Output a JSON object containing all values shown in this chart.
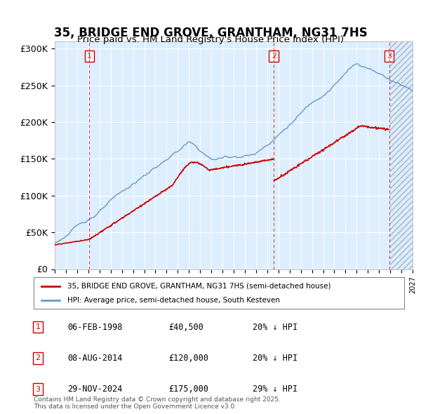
{
  "title": "35, BRIDGE END GROVE, GRANTHAM, NG31 7HS",
  "subtitle": "Price paid vs. HM Land Registry's House Price Index (HPI)",
  "property_label": "35, BRIDGE END GROVE, GRANTHAM, NG31 7HS (semi-detached house)",
  "hpi_label": "HPI: Average price, semi-detached house, South Kesteven",
  "footnote": "Contains HM Land Registry data © Crown copyright and database right 2025.\nThis data is licensed under the Open Government Licence v3.0.",
  "transactions": [
    {
      "num": 1,
      "date": "06-FEB-1998",
      "price": 40500,
      "year": 1998.1,
      "pct": "20%",
      "dir": "↓"
    },
    {
      "num": 2,
      "date": "08-AUG-2014",
      "price": 120000,
      "year": 2014.6,
      "pct": "20%",
      "dir": "↓"
    },
    {
      "num": 3,
      "date": "29-NOV-2024",
      "price": 175000,
      "year": 2024.9,
      "pct": "29%",
      "dir": "↓"
    }
  ],
  "property_color": "#cc0000",
  "hpi_color": "#6699cc",
  "background_color": "#ddeeff",
  "hatch_color": "#bbccdd",
  "grid_color": "#ffffff",
  "ylabel_color": "#000000",
  "ylim": [
    0,
    310000
  ],
  "yticks": [
    0,
    50000,
    100000,
    150000,
    200000,
    250000,
    300000
  ],
  "xlim_start": 1995,
  "xlim_end": 2027,
  "title_fontsize": 13,
  "subtitle_fontsize": 11
}
